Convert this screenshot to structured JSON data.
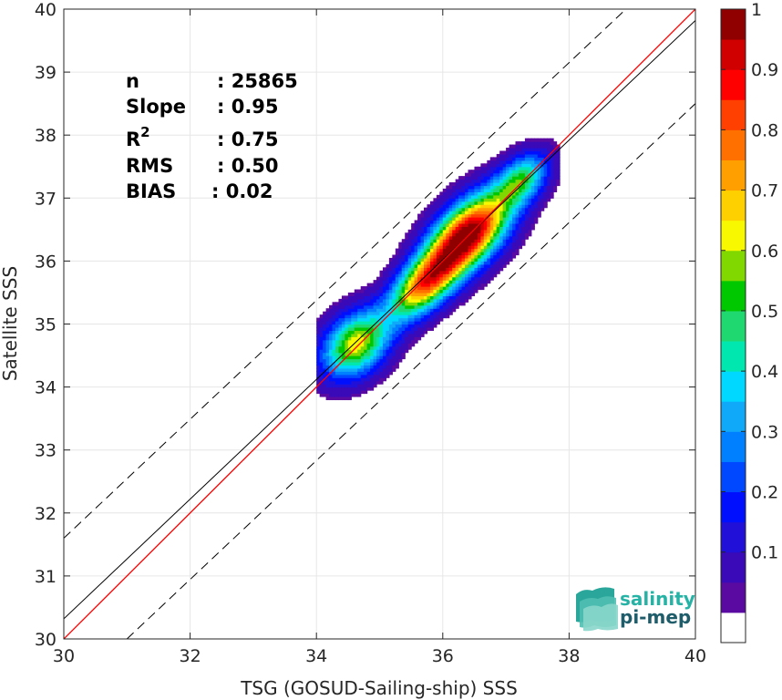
{
  "chart_data": {
    "type": "heatmap",
    "subtype": "density-contour-scatter",
    "xlabel": "TSG (GOSUD-Sailing-ship) SSS",
    "ylabel": "Satellite SSS",
    "xlim": [
      30,
      40
    ],
    "ylim": [
      30,
      40
    ],
    "x_ticks": [
      "30",
      "32",
      "34",
      "36",
      "38",
      "40"
    ],
    "y_ticks": [
      "30",
      "31",
      "32",
      "33",
      "34",
      "35",
      "36",
      "37",
      "38",
      "39",
      "40"
    ],
    "grid": true,
    "stats": {
      "n": {
        "label": "n",
        "value": ": 25865"
      },
      "slope": {
        "label": "Slope",
        "value": ": 0.95"
      },
      "r2": {
        "label": "R",
        "sup": "2",
        "value": ": 0.75"
      },
      "rms": {
        "label": "RMS",
        "value": ": 0.50"
      },
      "bias": {
        "label": "BIAS",
        "value": ": 0.02"
      }
    },
    "lines": {
      "one_to_one": {
        "color": "#ff0000",
        "points": [
          [
            30,
            30
          ],
          [
            40,
            40
          ]
        ]
      },
      "regression": {
        "color": "#000000",
        "points": [
          [
            30,
            30.32
          ],
          [
            40,
            39.82
          ]
        ]
      },
      "upper_bound": {
        "color": "#000000",
        "dashed": true,
        "points": [
          [
            30,
            31.6
          ],
          [
            38.9,
            40
          ]
        ]
      },
      "lower_bound": {
        "color": "#000000",
        "dashed": true,
        "points": [
          [
            31.0,
            30.0
          ],
          [
            40,
            38.5
          ]
        ]
      }
    },
    "density_clusters": [
      {
        "x": 34.62,
        "y": 34.68,
        "peak": 0.63,
        "sx": 0.42,
        "sy": 0.55
      },
      {
        "x": 35.72,
        "y": 35.65,
        "peak": 0.74,
        "sx": 0.5,
        "sy": 0.45
      },
      {
        "x": 36.42,
        "y": 36.45,
        "peak": 0.98,
        "sx": 0.55,
        "sy": 0.55
      },
      {
        "x": 37.25,
        "y": 37.3,
        "peak": 0.45,
        "sx": 0.35,
        "sy": 0.4
      }
    ],
    "colorbar": {
      "tick_labels": [
        "0.1",
        "0.2",
        "0.3",
        "0.4",
        "0.5",
        "0.6",
        "0.7",
        "0.8",
        "0.9",
        "1"
      ],
      "tick_values": [
        0.1,
        0.2,
        0.3,
        0.4,
        0.5,
        0.6,
        0.7,
        0.8,
        0.9,
        1.0
      ],
      "range": [
        0,
        1
      ],
      "colors": [
        "#ffffff",
        "#5a0aa0",
        "#3a0ab8",
        "#2010d8",
        "#0010ff",
        "#0048ff",
        "#0080ff",
        "#10a8f8",
        "#00d8ff",
        "#00e8b0",
        "#20d870",
        "#00c800",
        "#80d800",
        "#f8f800",
        "#ffd000",
        "#ffa000",
        "#ff7000",
        "#ff4000",
        "#ff0000",
        "#d00000",
        "#900000"
      ]
    }
  },
  "logo": {
    "line1": "salinity",
    "line2": "pi-mep",
    "color1": "#26b3a6",
    "color2": "#1f5d6b"
  }
}
